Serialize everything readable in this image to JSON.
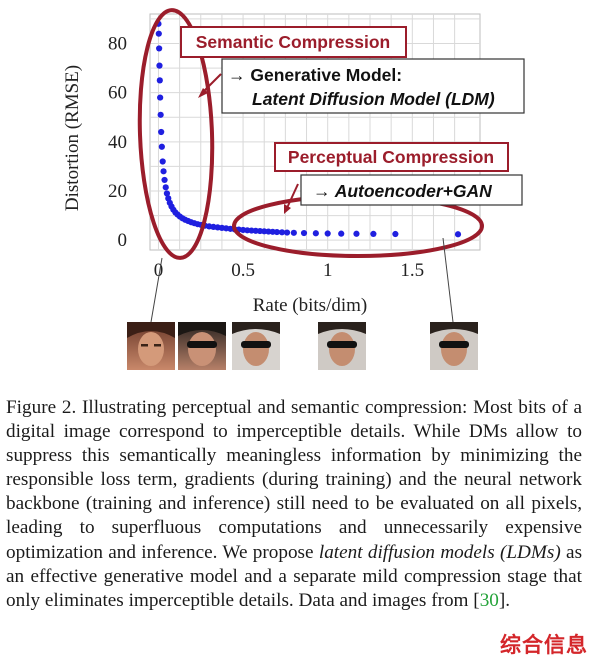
{
  "chart_data": {
    "type": "scatter",
    "xlabel": "Rate (bits/dim)",
    "ylabel": "Distortion (RMSE)",
    "xlim": [
      -0.05,
      1.9
    ],
    "ylim": [
      -4,
      92
    ],
    "xticks": [
      0,
      0.5,
      1,
      1.5
    ],
    "xtick_labels": [
      "0",
      "0.5",
      "1",
      "1.5"
    ],
    "yticks": [
      0,
      20,
      40,
      60,
      80
    ],
    "ytick_labels": [
      "0",
      "20",
      "40",
      "60",
      "80"
    ],
    "grid": true,
    "legend": "none",
    "series": [
      {
        "color": "#1f1fe0",
        "x": [
          0.0,
          0.002,
          0.004,
          0.006,
          0.008,
          0.01,
          0.013,
          0.016,
          0.02,
          0.025,
          0.03,
          0.036,
          0.043,
          0.05,
          0.058,
          0.067,
          0.077,
          0.088,
          0.1,
          0.113,
          0.127,
          0.142,
          0.158,
          0.175,
          0.193,
          0.212,
          0.232,
          0.253,
          0.275,
          0.3,
          0.325,
          0.35,
          0.375,
          0.4,
          0.425,
          0.45,
          0.475,
          0.5,
          0.525,
          0.55,
          0.575,
          0.6,
          0.625,
          0.65,
          0.675,
          0.7,
          0.73,
          0.76,
          0.8,
          0.86,
          0.93,
          1.0,
          1.08,
          1.17,
          1.27,
          1.4,
          1.77
        ],
        "y": [
          88,
          84,
          78,
          71,
          65,
          58,
          51,
          44,
          38,
          32,
          28,
          24.5,
          21.5,
          19,
          17,
          15.2,
          13.7,
          12.4,
          11.3,
          10.4,
          9.6,
          8.9,
          8.3,
          7.8,
          7.3,
          6.9,
          6.5,
          6.2,
          5.9,
          5.6,
          5.4,
          5.2,
          5.0,
          4.8,
          4.6,
          4.4,
          4.3,
          4.15,
          4.0,
          3.9,
          3.8,
          3.7,
          3.6,
          3.5,
          3.4,
          3.3,
          3.2,
          3.1,
          3.0,
          2.9,
          2.8,
          2.7,
          2.65,
          2.6,
          2.55,
          2.5,
          2.4
        ]
      }
    ],
    "annotations": {
      "semantic_title": "Semantic Compression",
      "semantic_line1": "→ Generative Model:",
      "semantic_line2": "Latent Diffusion Model (LDM)",
      "perceptual_title": "Perceptual Compression",
      "perceptual_line1": "→ Autoencoder+GAN"
    },
    "colors": {
      "annotation_red": "#9b1d2b",
      "points_blue": "#1f1fe0"
    }
  },
  "caption": {
    "label": "Figure 2.",
    "text_before_em": "Illustrating perceptual and semantic compression: Most bits of a digital image correspond to imperceptible details. While DMs allow to suppress this semantically meaningless information by minimizing the responsible loss term, gradients (during training) and the neural network backbone (training and inference) still need to be evaluated on all pixels, leading to superfluous computations and unnecessarily expensive optimization and inference. We propose",
    "em_text": "latent diffusion models (LDMs)",
    "text_after_em": "as an effective generative model and a separate mild compression stage that only eliminates imperceptible details. Data and images from",
    "ref_open": "[",
    "ref_num": "30",
    "ref_close": "].",
    "watermark": "综合信息"
  }
}
